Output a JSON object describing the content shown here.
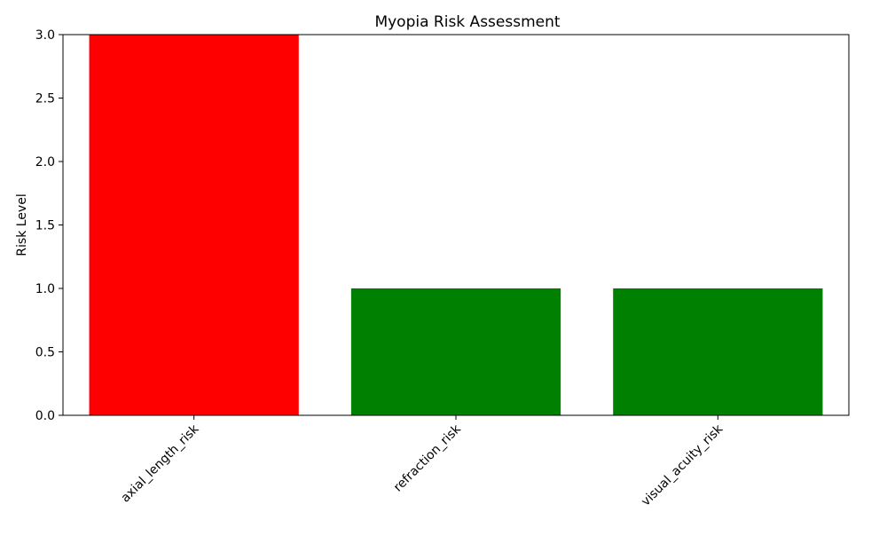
{
  "chart_data": {
    "type": "bar",
    "title": "Myopia Risk Assessment",
    "xlabel": "",
    "ylabel": "Risk Level",
    "categories": [
      "axial_length_risk",
      "refraction_risk",
      "visual_acuity_risk"
    ],
    "values": [
      3,
      1,
      1
    ],
    "colors": [
      "#ff0000",
      "#008000",
      "#008000"
    ],
    "ylim": [
      0,
      3
    ],
    "yticks": [
      "0.0",
      "0.5",
      "1.0",
      "1.5",
      "2.0",
      "2.5",
      "3.0"
    ],
    "grid": false,
    "legend": "none"
  }
}
